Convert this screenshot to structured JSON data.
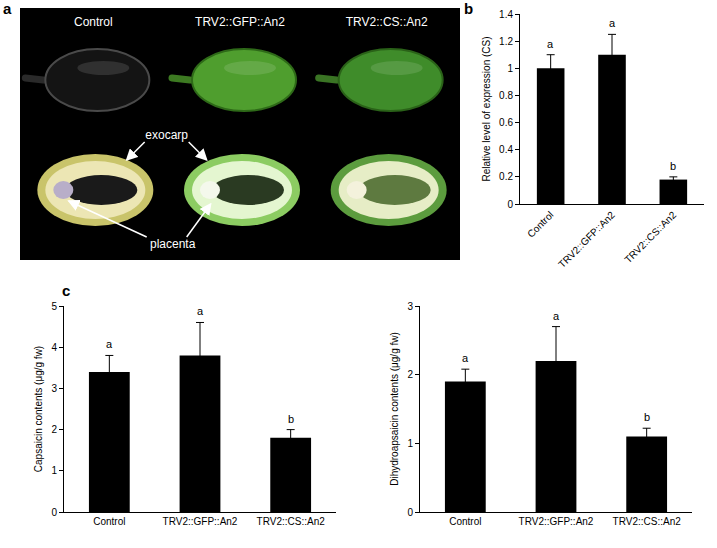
{
  "photo_panel": {
    "letter": "a",
    "columns": [
      "Control",
      "TRV2::GFP::An2",
      "TRV2::CS::An2"
    ],
    "labels": [
      "exocarp",
      "placenta"
    ]
  },
  "chart_data": [
    {
      "panel": "b",
      "type": "bar",
      "categories": [
        "Control",
        "TRV2::GFP::An2",
        "TRV2::CS::An2"
      ],
      "values": [
        1.0,
        1.1,
        0.18
      ],
      "errors": [
        0.1,
        0.15,
        0.02
      ],
      "annotations": [
        "a",
        "a",
        "b"
      ],
      "y_label": "Relative level of expression (CS)",
      "ylim": [
        0,
        1.4
      ],
      "yticks": [
        0,
        0.2,
        0.4,
        0.6,
        0.8,
        1,
        1.2,
        1.4
      ],
      "color": "#000000",
      "grid": false
    },
    {
      "panel": "c",
      "type": "bar",
      "categories": [
        "Control",
        "TRV2::GFP::An2",
        "TRV2::CS::An2"
      ],
      "values": [
        3.4,
        3.8,
        1.8
      ],
      "errors": [
        0.4,
        0.8,
        0.2
      ],
      "annotations": [
        "a",
        "a",
        "b"
      ],
      "y_label": "Capsaicin contents (μg/g fw)",
      "ylim": [
        0,
        5
      ],
      "yticks": [
        0,
        1,
        2,
        3,
        4,
        5
      ],
      "color": "#000000",
      "grid": false
    },
    {
      "type": "bar",
      "categories": [
        "Control",
        "TRV2::GFP::An2",
        "TRV2::CS::An2"
      ],
      "values": [
        1.9,
        2.2,
        1.1
      ],
      "errors": [
        0.18,
        0.5,
        0.12
      ],
      "annotations": [
        "a",
        "a",
        "b"
      ],
      "y_label": "Dihydroapsaicin contents (μg/g fw)",
      "ylim": [
        0,
        3
      ],
      "yticks": [
        0,
        1,
        2,
        3
      ],
      "color": "#000000",
      "grid": false
    }
  ]
}
